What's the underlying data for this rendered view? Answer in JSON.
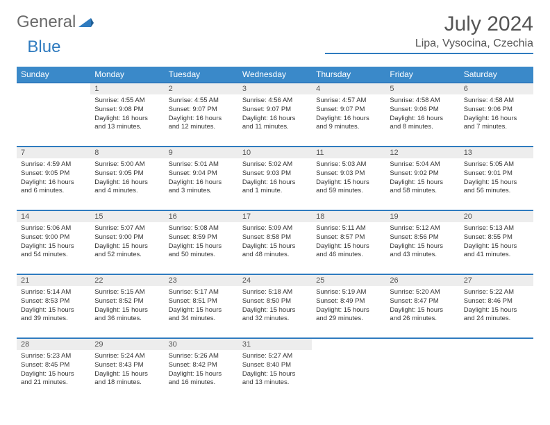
{
  "brand": {
    "part1": "General",
    "part2": "Blue"
  },
  "title": "July 2024",
  "location": "Lipa, Vysocina, Czechia",
  "colors": {
    "header_bg": "#3a89c9",
    "rule": "#2f7bbf",
    "daynum_bg": "#ededed",
    "text": "#333333",
    "title_text": "#555555"
  },
  "weekdays": [
    "Sunday",
    "Monday",
    "Tuesday",
    "Wednesday",
    "Thursday",
    "Friday",
    "Saturday"
  ],
  "first_weekday_index": 1,
  "days": [
    {
      "n": 1,
      "sunrise": "4:55 AM",
      "sunset": "9:08 PM",
      "daylight": "16 hours and 13 minutes."
    },
    {
      "n": 2,
      "sunrise": "4:55 AM",
      "sunset": "9:07 PM",
      "daylight": "16 hours and 12 minutes."
    },
    {
      "n": 3,
      "sunrise": "4:56 AM",
      "sunset": "9:07 PM",
      "daylight": "16 hours and 11 minutes."
    },
    {
      "n": 4,
      "sunrise": "4:57 AM",
      "sunset": "9:07 PM",
      "daylight": "16 hours and 9 minutes."
    },
    {
      "n": 5,
      "sunrise": "4:58 AM",
      "sunset": "9:06 PM",
      "daylight": "16 hours and 8 minutes."
    },
    {
      "n": 6,
      "sunrise": "4:58 AM",
      "sunset": "9:06 PM",
      "daylight": "16 hours and 7 minutes."
    },
    {
      "n": 7,
      "sunrise": "4:59 AM",
      "sunset": "9:05 PM",
      "daylight": "16 hours and 6 minutes."
    },
    {
      "n": 8,
      "sunrise": "5:00 AM",
      "sunset": "9:05 PM",
      "daylight": "16 hours and 4 minutes."
    },
    {
      "n": 9,
      "sunrise": "5:01 AM",
      "sunset": "9:04 PM",
      "daylight": "16 hours and 3 minutes."
    },
    {
      "n": 10,
      "sunrise": "5:02 AM",
      "sunset": "9:03 PM",
      "daylight": "16 hours and 1 minute."
    },
    {
      "n": 11,
      "sunrise": "5:03 AM",
      "sunset": "9:03 PM",
      "daylight": "15 hours and 59 minutes."
    },
    {
      "n": 12,
      "sunrise": "5:04 AM",
      "sunset": "9:02 PM",
      "daylight": "15 hours and 58 minutes."
    },
    {
      "n": 13,
      "sunrise": "5:05 AM",
      "sunset": "9:01 PM",
      "daylight": "15 hours and 56 minutes."
    },
    {
      "n": 14,
      "sunrise": "5:06 AM",
      "sunset": "9:00 PM",
      "daylight": "15 hours and 54 minutes."
    },
    {
      "n": 15,
      "sunrise": "5:07 AM",
      "sunset": "9:00 PM",
      "daylight": "15 hours and 52 minutes."
    },
    {
      "n": 16,
      "sunrise": "5:08 AM",
      "sunset": "8:59 PM",
      "daylight": "15 hours and 50 minutes."
    },
    {
      "n": 17,
      "sunrise": "5:09 AM",
      "sunset": "8:58 PM",
      "daylight": "15 hours and 48 minutes."
    },
    {
      "n": 18,
      "sunrise": "5:11 AM",
      "sunset": "8:57 PM",
      "daylight": "15 hours and 46 minutes."
    },
    {
      "n": 19,
      "sunrise": "5:12 AM",
      "sunset": "8:56 PM",
      "daylight": "15 hours and 43 minutes."
    },
    {
      "n": 20,
      "sunrise": "5:13 AM",
      "sunset": "8:55 PM",
      "daylight": "15 hours and 41 minutes."
    },
    {
      "n": 21,
      "sunrise": "5:14 AM",
      "sunset": "8:53 PM",
      "daylight": "15 hours and 39 minutes."
    },
    {
      "n": 22,
      "sunrise": "5:15 AM",
      "sunset": "8:52 PM",
      "daylight": "15 hours and 36 minutes."
    },
    {
      "n": 23,
      "sunrise": "5:17 AM",
      "sunset": "8:51 PM",
      "daylight": "15 hours and 34 minutes."
    },
    {
      "n": 24,
      "sunrise": "5:18 AM",
      "sunset": "8:50 PM",
      "daylight": "15 hours and 32 minutes."
    },
    {
      "n": 25,
      "sunrise": "5:19 AM",
      "sunset": "8:49 PM",
      "daylight": "15 hours and 29 minutes."
    },
    {
      "n": 26,
      "sunrise": "5:20 AM",
      "sunset": "8:47 PM",
      "daylight": "15 hours and 26 minutes."
    },
    {
      "n": 27,
      "sunrise": "5:22 AM",
      "sunset": "8:46 PM",
      "daylight": "15 hours and 24 minutes."
    },
    {
      "n": 28,
      "sunrise": "5:23 AM",
      "sunset": "8:45 PM",
      "daylight": "15 hours and 21 minutes."
    },
    {
      "n": 29,
      "sunrise": "5:24 AM",
      "sunset": "8:43 PM",
      "daylight": "15 hours and 18 minutes."
    },
    {
      "n": 30,
      "sunrise": "5:26 AM",
      "sunset": "8:42 PM",
      "daylight": "15 hours and 16 minutes."
    },
    {
      "n": 31,
      "sunrise": "5:27 AM",
      "sunset": "8:40 PM",
      "daylight": "15 hours and 13 minutes."
    }
  ],
  "labels": {
    "sunrise": "Sunrise:",
    "sunset": "Sunset:",
    "daylight": "Daylight:"
  }
}
